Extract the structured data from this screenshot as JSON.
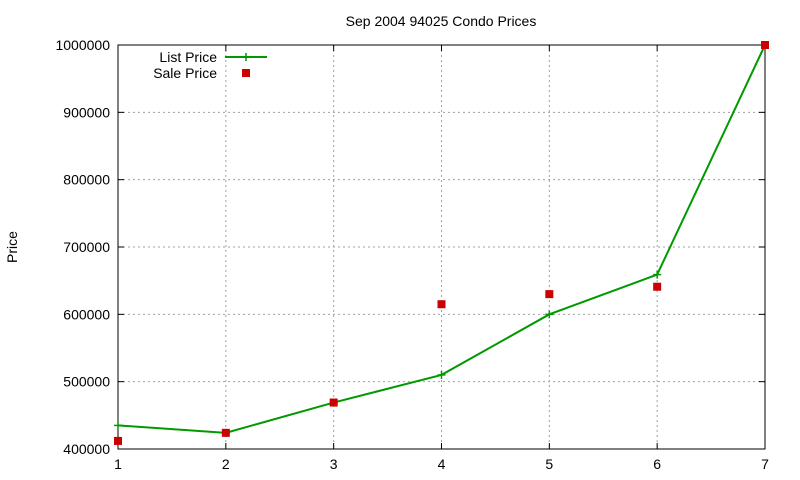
{
  "chart_data": {
    "type": "line",
    "title": "Sep 2004 94025 Condo Prices",
    "xlabel": "",
    "ylabel": "Price",
    "xlim": [
      1,
      7
    ],
    "ylim": [
      400000,
      1000000
    ],
    "x_ticks": [
      1,
      2,
      3,
      4,
      5,
      6,
      7
    ],
    "y_ticks": [
      400000,
      500000,
      600000,
      700000,
      800000,
      900000,
      1000000
    ],
    "grid": true,
    "legend_position": "top-left",
    "series": [
      {
        "name": "List Price",
        "style": "line-plus",
        "color": "#009900",
        "x": [
          1,
          2,
          3,
          4,
          5,
          6,
          7
        ],
        "values": [
          435000,
          424000,
          469000,
          510000,
          600000,
          659000,
          1000000
        ]
      },
      {
        "name": "Sale Price",
        "style": "square-points",
        "color": "#cc0000",
        "x": [
          1,
          2,
          3,
          4,
          5,
          6,
          7
        ],
        "values": [
          412000,
          424000,
          469000,
          615000,
          630000,
          641000,
          1000000
        ]
      }
    ]
  }
}
